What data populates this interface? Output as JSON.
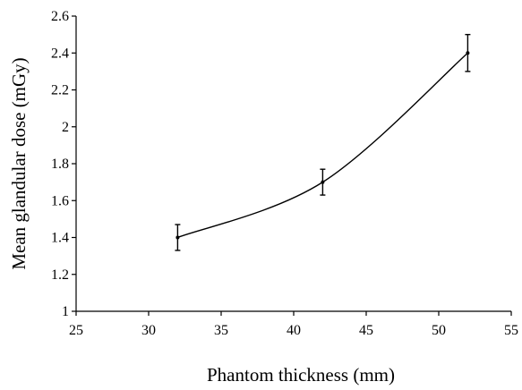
{
  "chart_data": {
    "type": "line",
    "title": "",
    "xlabel": "Phantom thickness (mm)",
    "ylabel": "Mean glandular dose (mGy)",
    "xlim": [
      25,
      55
    ],
    "ylim": [
      1,
      2.6
    ],
    "x_ticks": [
      25,
      30,
      35,
      40,
      45,
      50,
      55
    ],
    "y_ticks": [
      1,
      1.2,
      1.4,
      1.6,
      1.8,
      2,
      2.2,
      2.4,
      2.6
    ],
    "x_tick_labels": [
      "25",
      "30",
      "35",
      "40",
      "45",
      "50",
      "55"
    ],
    "y_tick_labels": [
      "1",
      "1.2",
      "1.4",
      "1.6",
      "1.8",
      "2",
      "2.2",
      "2.4",
      "2.6"
    ],
    "grid": false,
    "smoothed": true,
    "series": [
      {
        "x": [
          32,
          42,
          52
        ],
        "y": [
          1.4,
          1.7,
          2.4
        ],
        "error": [
          0.07,
          0.07,
          0.1
        ]
      }
    ]
  }
}
